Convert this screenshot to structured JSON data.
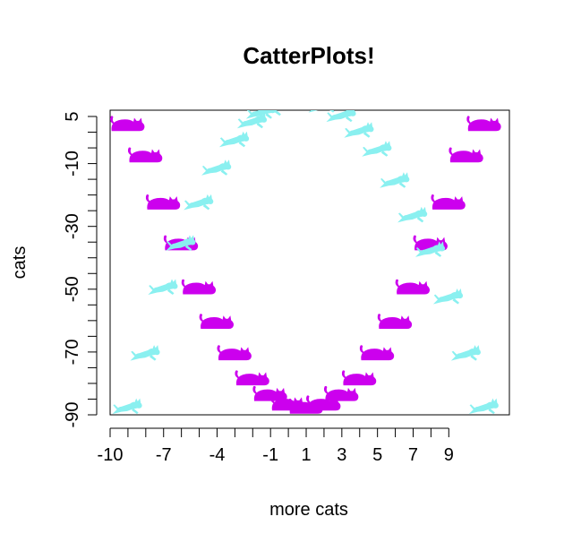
{
  "chart_data": {
    "type": "scatter",
    "title": "CatterPlots!",
    "xlabel": "more cats",
    "ylabel": "cats",
    "xlim": [
      -10,
      12.4
    ],
    "ylim": [
      -90,
      7
    ],
    "x_ticks": [
      -10,
      -9,
      -8,
      -7,
      -6,
      -5,
      -4,
      -3,
      -2,
      -1,
      0,
      1,
      2,
      3,
      4,
      5,
      6,
      7,
      8,
      9
    ],
    "x_tick_labels": [
      "-10",
      "",
      "",
      "-7",
      "",
      "",
      "-4",
      "",
      "",
      "-1",
      "",
      "1",
      "",
      "3",
      "",
      "5",
      "",
      "7",
      "",
      "9"
    ],
    "y_ticks": [
      -90,
      -85,
      -80,
      -75,
      -70,
      -65,
      -60,
      -55,
      -50,
      -45,
      -40,
      -35,
      -30,
      -25,
      -20,
      -15,
      -10,
      -5,
      0,
      5
    ],
    "y_tick_labels": [
      "-90",
      "",
      "",
      "",
      "-70",
      "",
      "",
      "",
      "-50",
      "",
      "",
      "",
      "-30",
      "",
      "",
      "",
      "-10",
      "",
      "",
      "5"
    ],
    "grid": false,
    "legend": "none",
    "series": [
      {
        "color": "#cc00ee",
        "icon": "sitting-cat-icon",
        "points": [
          {
            "x": -10,
            "y": 0
          },
          {
            "x": -9,
            "y": -10
          },
          {
            "x": -8,
            "y": -25
          },
          {
            "x": -7,
            "y": -38
          },
          {
            "x": -6,
            "y": -52
          },
          {
            "x": -5,
            "y": -63
          },
          {
            "x": -4,
            "y": -73
          },
          {
            "x": -3,
            "y": -81
          },
          {
            "x": -2,
            "y": -86
          },
          {
            "x": -1,
            "y": -89
          },
          {
            "x": 0,
            "y": -90
          },
          {
            "x": 1,
            "y": -89
          },
          {
            "x": 2,
            "y": -86
          },
          {
            "x": 3,
            "y": -81
          },
          {
            "x": 4,
            "y": -73
          },
          {
            "x": 5,
            "y": -63
          },
          {
            "x": 6,
            "y": -52
          },
          {
            "x": 7,
            "y": -38
          },
          {
            "x": 8,
            "y": -25
          },
          {
            "x": 9,
            "y": -10
          },
          {
            "x": 10,
            "y": 0
          }
        ]
      },
      {
        "color": "#8af0f0",
        "icon": "jumping-cat-icon",
        "points": [
          {
            "x": -10,
            "y": -90
          },
          {
            "x": -9,
            "y": -73
          },
          {
            "x": -8,
            "y": -52
          },
          {
            "x": -7,
            "y": -38
          },
          {
            "x": -6,
            "y": -25
          },
          {
            "x": -5,
            "y": -14
          },
          {
            "x": -4,
            "y": -5
          },
          {
            "x": -3,
            "y": 1
          },
          {
            "x": -2.5,
            "y": 4
          },
          {
            "x": -2,
            "y": 5
          },
          {
            "x": -1,
            "y": 7
          },
          {
            "x": 0,
            "y": 7
          },
          {
            "x": 1,
            "y": 6
          },
          {
            "x": 2,
            "y": 3
          },
          {
            "x": 3,
            "y": -2
          },
          {
            "x": 4,
            "y": -8
          },
          {
            "x": 5,
            "y": -18
          },
          {
            "x": 6,
            "y": -29
          },
          {
            "x": 7,
            "y": -40
          },
          {
            "x": 8,
            "y": -55
          },
          {
            "x": 9,
            "y": -73
          },
          {
            "x": 10,
            "y": -90
          }
        ]
      }
    ]
  }
}
